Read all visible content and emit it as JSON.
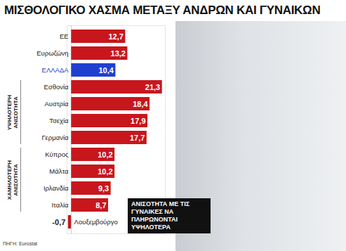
{
  "chart_data": {
    "type": "bar",
    "orientation": "horizontal",
    "title": "ΜΙΣΘΟΛΟΓΙΚΟ ΧΑΣΜΑ ΜΕΤΑΞΥ ΑΝΔΡΩΝ ΚΑΙ ΓΥΝΑΙΚΩΝ",
    "categories": [
      "ΕΕ",
      "Ευρωζώνη",
      "ΕΛΛΑΔΑ",
      "Εσθονία",
      "Αυστρία",
      "Τσεχία",
      "Γερμανία",
      "Κύπρος",
      "Μάλτα",
      "Ιρλανδία",
      "Ιταλία",
      "Λουξεμβούργο"
    ],
    "values": [
      12.7,
      13.2,
      10.4,
      21.3,
      18.4,
      17.9,
      17.7,
      10.2,
      10.2,
      9.3,
      8.7,
      -0.7
    ],
    "value_labels": [
      "12,7",
      "13,2",
      "10,4",
      "21,3",
      "18,4",
      "17,9",
      "17,7",
      "10,2",
      "10,2",
      "9,3",
      "8,7",
      "-0,7"
    ],
    "colors": [
      "#c8161d",
      "#c8161d",
      "#1f3fd1",
      "#c8161d",
      "#c8161d",
      "#c8161d",
      "#c8161d",
      "#c8161d",
      "#c8161d",
      "#c8161d",
      "#c8161d",
      "#c8161d"
    ],
    "data_labels": true,
    "tick_labels": "y",
    "grid": false,
    "xlim": [
      -1,
      22
    ],
    "groups": [
      {
        "label": "ΥΨΗΛΟΤΕΡΗ ΑΝΙΣΟΤΗΤΑ",
        "categories": [
          "Εσθονία",
          "Αυστρία",
          "Τσεχία",
          "Γερμανία"
        ]
      },
      {
        "label": "ΧΑΜΗΛΟΤΕΡΗ ΑΝΙΣΟΤΗΤΑ",
        "categories": [
          "Κύπρος",
          "Μάλτα",
          "Ιρλανδία",
          "Ιταλία"
        ]
      }
    ],
    "annotation": "ΑΝΙΣΟΤΗΤΑ ΜΕ ΤΙΣ ΓΥΝΑΙΚΕΣ ΝΑ ΠΛΗΡΩΝΟΝΤΑΙ ΥΨΗΛΟΤΕΡΑ",
    "source": "ΠΗΓΗ: Eurostat"
  }
}
